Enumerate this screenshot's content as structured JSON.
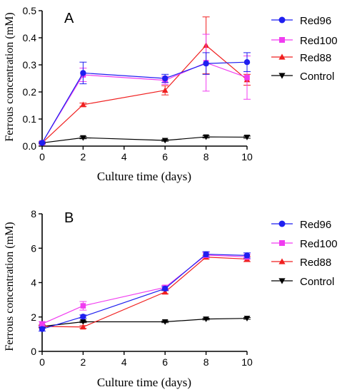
{
  "chart_data": [
    {
      "type": "line",
      "panel_label": "A",
      "xlabel": "Culture time (days)",
      "ylabel": "Ferrous concentration (mM)",
      "xlim": [
        0,
        10
      ],
      "ylim": [
        0,
        0.5
      ],
      "xticks": [
        "0",
        "2",
        "4",
        "6",
        "8",
        "10"
      ],
      "yticks": [
        "0.0",
        "0.1",
        "0.2",
        "0.3",
        "0.4",
        "0.5"
      ],
      "x": [
        0,
        2,
        6,
        8,
        10
      ],
      "legend_position": "right",
      "grid": false,
      "series": [
        {
          "name": "Red96",
          "color": "#1f1ff0",
          "marker": "circle",
          "values": [
            0.012,
            0.27,
            0.25,
            0.305,
            0.31
          ],
          "errors": [
            0.004,
            0.04,
            0.015,
            0.04,
            0.035
          ]
        },
        {
          "name": "Red100",
          "color": "#f03cf0",
          "marker": "square",
          "values": [
            0.012,
            0.263,
            0.243,
            0.308,
            0.253
          ],
          "errors": [
            0.004,
            0.025,
            0.015,
            0.105,
            0.08
          ]
        },
        {
          "name": "Red88",
          "color": "#f02020",
          "marker": "triangle-up",
          "values": [
            0.012,
            0.153,
            0.206,
            0.372,
            0.245
          ],
          "errors": [
            0.003,
            0.006,
            0.017,
            0.105,
            0.02
          ]
        },
        {
          "name": "Control",
          "color": "#000000",
          "marker": "triangle-down",
          "values": [
            0.012,
            0.031,
            0.021,
            0.034,
            0.033
          ],
          "errors": [
            0.002,
            0.004,
            0.003,
            0.004,
            0.004
          ]
        }
      ]
    },
    {
      "type": "line",
      "panel_label": "B",
      "xlabel": "Culture time (days)",
      "ylabel": "Ferrous concentration (mM)",
      "xlim": [
        0,
        10
      ],
      "ylim": [
        0,
        8
      ],
      "xticks": [
        "0",
        "2",
        "4",
        "6",
        "8",
        "10"
      ],
      "yticks": [
        "0",
        "2",
        "4",
        "6",
        "8"
      ],
      "x": [
        0,
        2,
        6,
        8,
        10
      ],
      "legend_position": "right",
      "grid": false,
      "series": [
        {
          "name": "Red96",
          "color": "#1f1ff0",
          "marker": "circle",
          "values": [
            1.3,
            2.02,
            3.65,
            5.65,
            5.58
          ],
          "errors": [
            0.12,
            0.1,
            0.12,
            0.15,
            0.15
          ]
        },
        {
          "name": "Red100",
          "color": "#f03cf0",
          "marker": "square",
          "values": [
            1.6,
            2.65,
            3.72,
            5.6,
            5.5
          ],
          "errors": [
            0.12,
            0.25,
            0.12,
            0.15,
            0.15
          ]
        },
        {
          "name": "Red88",
          "color": "#f02020",
          "marker": "triangle-up",
          "values": [
            1.45,
            1.42,
            3.45,
            5.48,
            5.37
          ],
          "errors": [
            0.08,
            0.08,
            0.1,
            0.1,
            0.15
          ]
        },
        {
          "name": "Control",
          "color": "#000000",
          "marker": "triangle-down",
          "values": [
            1.45,
            1.72,
            1.72,
            1.88,
            1.92
          ],
          "errors": [
            0.05,
            0.05,
            0.05,
            0.05,
            0.05
          ]
        }
      ]
    }
  ]
}
